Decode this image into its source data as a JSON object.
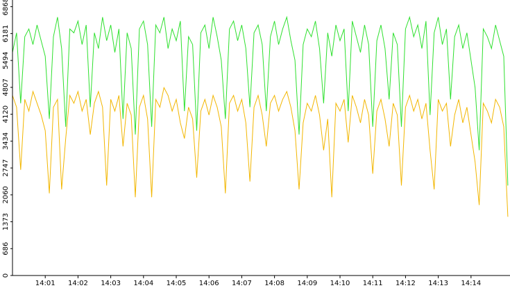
{
  "chart_data": {
    "type": "line",
    "x": [
      0,
      0.125,
      0.25,
      0.375,
      0.5,
      0.625,
      0.75,
      0.875,
      1,
      1.125,
      1.25,
      1.375,
      1.5,
      1.625,
      1.75,
      1.875,
      2,
      2.125,
      2.25,
      2.375,
      2.5,
      2.625,
      2.75,
      2.875,
      3,
      3.125,
      3.25,
      3.375,
      3.5,
      3.625,
      3.75,
      3.875,
      4,
      4.125,
      4.25,
      4.375,
      4.5,
      4.625,
      4.75,
      4.875,
      5,
      5.125,
      5.25,
      5.375,
      5.5,
      5.625,
      5.75,
      5.875,
      6,
      6.125,
      6.25,
      6.375,
      6.5,
      6.625,
      6.75,
      6.875,
      7,
      7.125,
      7.25,
      7.375,
      7.5,
      7.625,
      7.75,
      7.875,
      8,
      8.125,
      8.25,
      8.375,
      8.5,
      8.625,
      8.75,
      8.875,
      9,
      9.125,
      9.25,
      9.375,
      9.5,
      9.625,
      9.75,
      9.875,
      10,
      10.125,
      10.25,
      10.375,
      10.5,
      10.625,
      10.75,
      10.875,
      11,
      11.125,
      11.25,
      11.375,
      11.5,
      11.625,
      11.75,
      11.875,
      12,
      12.125,
      12.25,
      12.375,
      12.5,
      12.625,
      12.75,
      12.875,
      13,
      13.125,
      13.25,
      13.375,
      13.5,
      13.625,
      13.75,
      13.875,
      14,
      14.125,
      14.25,
      14.375,
      14.5,
      14.625,
      14.75,
      14.875,
      15,
      15.125
    ],
    "series": [
      {
        "color": "#2ee02e",
        "values": [
          5700,
          6200,
          4400,
          6100,
          6300,
          5900,
          6400,
          6000,
          5600,
          4000,
          6100,
          6600,
          5800,
          3800,
          6300,
          6200,
          6500,
          5900,
          6400,
          4300,
          6200,
          5800,
          6600,
          6000,
          6400,
          5700,
          6300,
          4000,
          6200,
          5800,
          3600,
          6300,
          6500,
          5900,
          3800,
          6400,
          6200,
          6600,
          5800,
          6300,
          6000,
          6500,
          4200,
          6100,
          5900,
          3700,
          6200,
          6400,
          5800,
          6600,
          6100,
          5500,
          4000,
          6300,
          6500,
          6000,
          6400,
          5800,
          4300,
          6200,
          6400,
          5900,
          4200,
          6100,
          6500,
          5900,
          6300,
          6600,
          6000,
          5500,
          3600,
          5900,
          6300,
          6100,
          6500,
          5800,
          4400,
          6200,
          5600,
          6400,
          6000,
          6300,
          4200,
          6500,
          6100,
          5700,
          6400,
          5900,
          3800,
          6000,
          6400,
          5800,
          4500,
          6200,
          5900,
          3800,
          6300,
          6600,
          6100,
          6400,
          5800,
          6500,
          4100,
          6200,
          6600,
          5900,
          6300,
          4500,
          6100,
          6400,
          5800,
          6200,
          5500,
          4800,
          3200,
          6300,
          6100,
          5800,
          6400,
          6000,
          5600,
          2300
        ]
      },
      {
        "color": "#f2b600",
        "values": [
          4600,
          4300,
          2700,
          4500,
          4200,
          4700,
          4400,
          4100,
          3700,
          2100,
          4300,
          4500,
          2200,
          3500,
          4600,
          4400,
          4700,
          4200,
          4500,
          3600,
          4400,
          4700,
          4300,
          2300,
          4500,
          4200,
          4600,
          3300,
          4400,
          4100,
          2000,
          4300,
          4600,
          4000,
          2000,
          4500,
          4300,
          4800,
          4600,
          4200,
          4500,
          3900,
          3500,
          4300,
          4000,
          2500,
          4200,
          4500,
          4100,
          4600,
          4300,
          3800,
          2100,
          4400,
          4600,
          4200,
          4500,
          3900,
          2400,
          4300,
          4600,
          4100,
          3300,
          4400,
          4600,
          4200,
          4500,
          4700,
          4300,
          3700,
          2200,
          3900,
          4400,
          4200,
          4600,
          4100,
          3200,
          4000,
          2000,
          4400,
          4200,
          4500,
          3400,
          4600,
          4300,
          3900,
          4500,
          4100,
          2600,
          4200,
          4500,
          4000,
          3300,
          4400,
          4100,
          2300,
          4300,
          4600,
          4200,
          4500,
          4000,
          4400,
          3200,
          2200,
          4500,
          4200,
          4400,
          3300,
          4100,
          4500,
          3900,
          4300,
          3600,
          2900,
          1800,
          4400,
          4200,
          3900,
          4500,
          4300,
          3800,
          1500
        ]
      }
    ],
    "xlim": [
      0,
      15.19
    ],
    "xticks": [
      {
        "value": 1,
        "label": "14:01"
      },
      {
        "value": 2,
        "label": "14:02"
      },
      {
        "value": 3,
        "label": "14:03"
      },
      {
        "value": 4,
        "label": "14:04"
      },
      {
        "value": 5,
        "label": "14:05"
      },
      {
        "value": 6,
        "label": "14:06"
      },
      {
        "value": 7,
        "label": "14:07"
      },
      {
        "value": 8,
        "label": "14:08"
      },
      {
        "value": 9,
        "label": "14:09"
      },
      {
        "value": 10,
        "label": "14:10"
      },
      {
        "value": 11,
        "label": "14:11"
      },
      {
        "value": 12,
        "label": "14:12"
      },
      {
        "value": 13,
        "label": "14:13"
      },
      {
        "value": 14,
        "label": "14:14"
      }
    ],
    "ylim": [
      0,
      6950
    ],
    "yticks": [
      0,
      686,
      1373,
      2060,
      2747,
      3434,
      4120,
      4807,
      5494,
      6181,
      6868
    ]
  }
}
